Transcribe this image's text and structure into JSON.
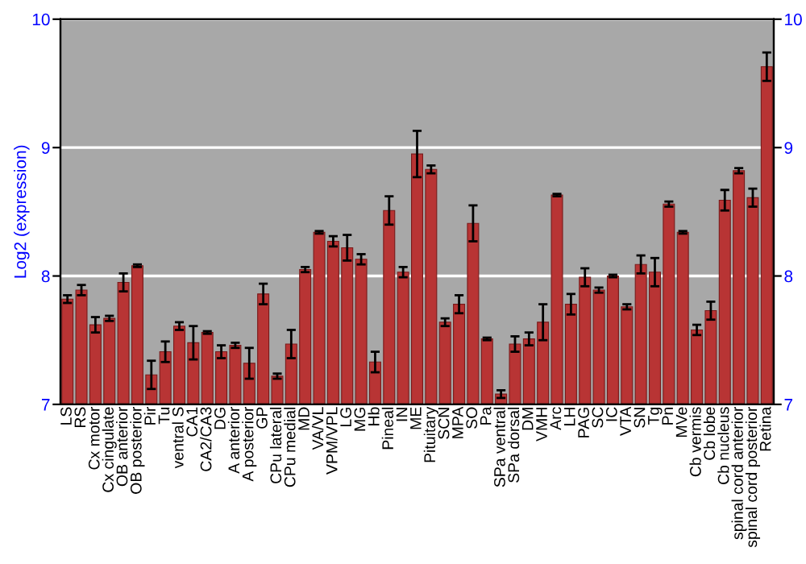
{
  "chart_data": {
    "type": "bar",
    "ylabel": "Log2 (expression)",
    "categories": [
      "LS",
      "RS",
      "Cx motor",
      "Cx cingulate",
      "OB anterior",
      "OB posterior",
      "Pir",
      "Tu",
      "ventral S",
      "CA1",
      "CA2/CA3",
      "DG",
      "A anterior",
      "A posterior",
      "GP",
      "CPu lateral",
      "CPu medial",
      "MD",
      "VA/VL",
      "VPM/VPL",
      "LG",
      "MG",
      "Hb",
      "Pineal",
      "IN",
      "ME",
      "Pituitary",
      "SCN",
      "MPA",
      "SO",
      "Pa",
      "SPa ventral",
      "SPa dorsal",
      "DM",
      "VMH",
      "Arc",
      "LH",
      "PAG",
      "SC",
      "IC",
      "VTA",
      "SN",
      "Tg",
      "Pn",
      "MVe",
      "Cb vermis",
      "Cb lobe",
      "Cb nucleus",
      "spinal cord anterior",
      "spinal cord posterior",
      "Retina"
    ],
    "series": [
      {
        "color": "#b83434",
        "values": [
          7.82,
          7.89,
          7.62,
          7.67,
          7.95,
          8.08,
          7.23,
          7.41,
          7.61,
          7.48,
          7.56,
          7.41,
          7.46,
          7.32,
          7.86,
          7.22,
          7.47,
          8.05,
          8.34,
          8.27,
          8.22,
          8.13,
          7.33,
          8.51,
          8.03,
          8.95,
          8.83,
          7.64,
          7.78,
          8.41,
          7.51,
          7.08,
          7.47,
          7.51,
          7.64,
          8.63,
          7.78,
          7.99,
          7.89,
          8.0,
          7.76,
          8.09,
          8.03,
          8.56,
          8.34,
          7.58,
          7.73,
          8.59,
          8.82,
          8.61,
          9.63
        ],
        "errors": [
          0.03,
          0.04,
          0.06,
          0.02,
          0.07,
          0.01,
          0.11,
          0.08,
          0.03,
          0.13,
          0.01,
          0.05,
          0.02,
          0.12,
          0.08,
          0.02,
          0.11,
          0.02,
          0.01,
          0.04,
          0.1,
          0.04,
          0.08,
          0.11,
          0.04,
          0.18,
          0.03,
          0.03,
          0.07,
          0.14,
          0.01,
          0.03,
          0.06,
          0.05,
          0.14,
          0.01,
          0.08,
          0.07,
          0.02,
          0.01,
          0.02,
          0.07,
          0.11,
          0.02,
          0.01,
          0.04,
          0.07,
          0.08,
          0.02,
          0.07,
          0.11
        ]
      }
    ],
    "ylim": [
      7,
      10
    ],
    "yticks": [
      7,
      8,
      9,
      10
    ],
    "y2lim": [
      7,
      10
    ],
    "y2ticks": [
      7,
      8,
      9,
      10
    ],
    "grid": "y"
  }
}
